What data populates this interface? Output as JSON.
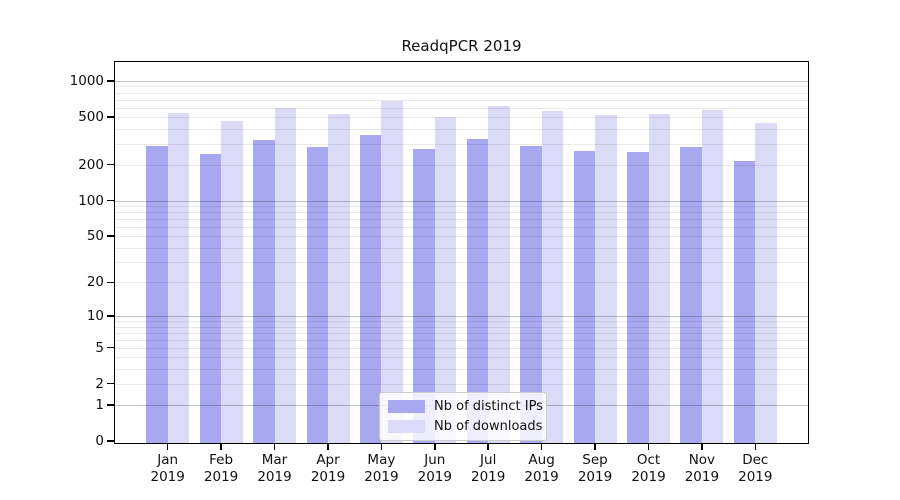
{
  "chart_data": {
    "type": "bar",
    "title": "ReadqPCR 2019",
    "categories": [
      "Jan",
      "Feb",
      "Mar",
      "Apr",
      "May",
      "Jun",
      "Jul",
      "Aug",
      "Sep",
      "Oct",
      "Nov",
      "Dec"
    ],
    "category_year": "2019",
    "series": [
      {
        "name": "Nb of distinct IPs",
        "color": "#a8a8f0",
        "values": [
          285,
          248,
          320,
          283,
          355,
          268,
          325,
          286,
          260,
          256,
          283,
          216
        ]
      },
      {
        "name": "Nb of downloads",
        "color": "#dbdbf8",
        "values": [
          540,
          460,
          590,
          528,
          680,
          498,
          624,
          560,
          519,
          534,
          575,
          447
        ]
      }
    ],
    "yscale": "log1p",
    "yticks": [
      0,
      1,
      2,
      5,
      10,
      20,
      50,
      100,
      200,
      500,
      1000
    ],
    "ylim": [
      0,
      1412
    ],
    "grid": "horizontal",
    "major_gridlines": [
      1,
      10,
      100,
      1000
    ],
    "legend_position": "inside-bottom-center",
    "colors": {
      "axis": "#000000",
      "major_grid": "#c8c8c8",
      "minor_grid": "#ebebeb",
      "background": "#ffffff"
    }
  }
}
